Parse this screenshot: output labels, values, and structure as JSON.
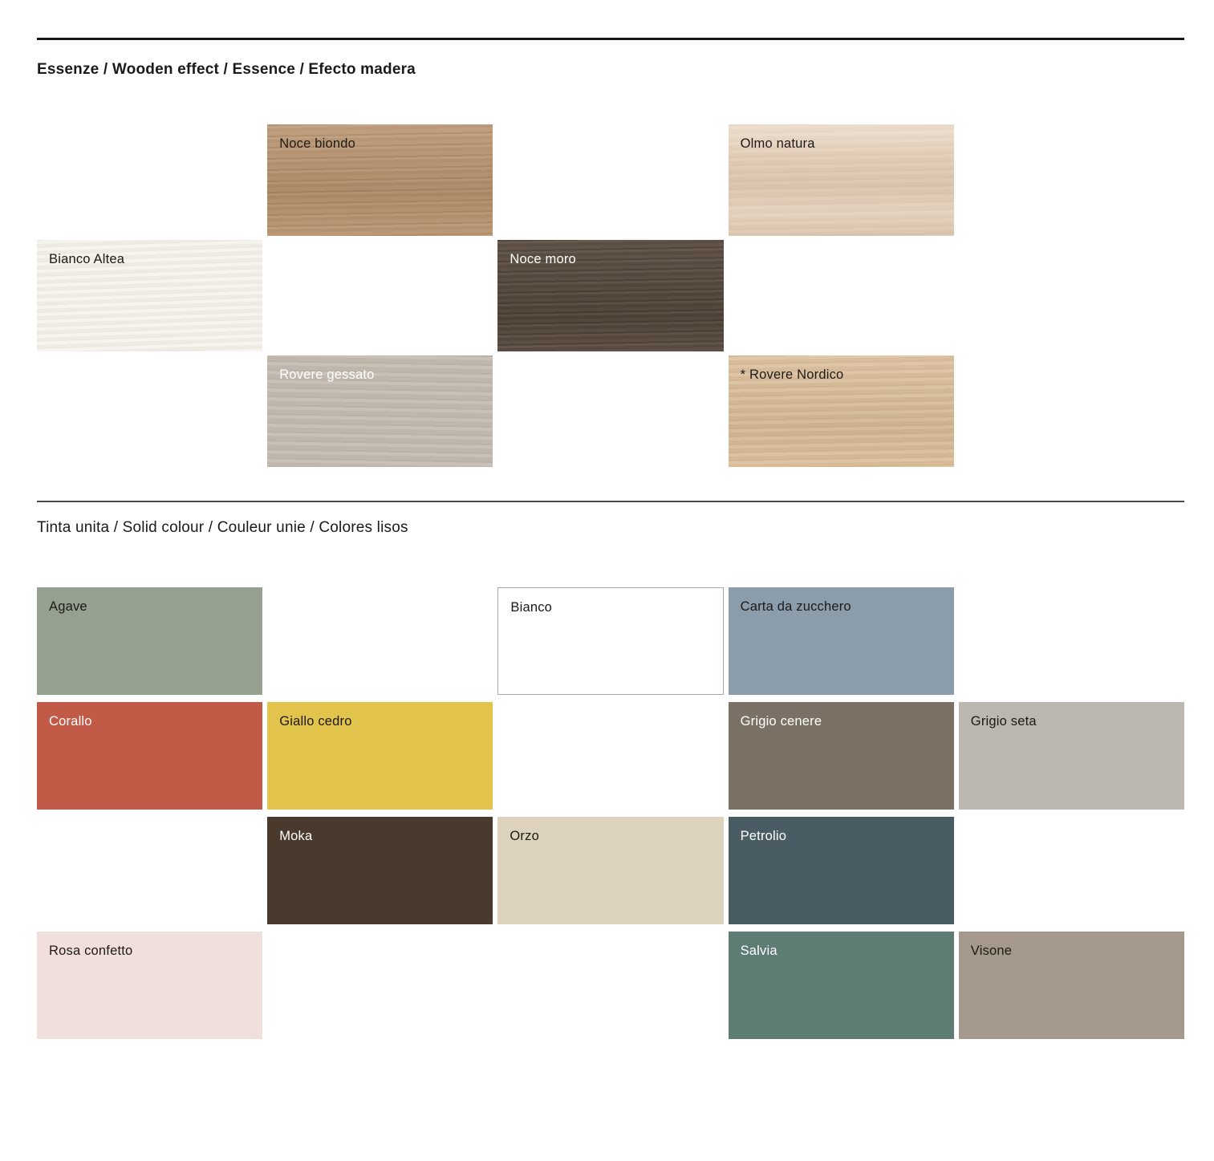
{
  "rules": {
    "thick_color": "#161616",
    "thin_color": "#4a4a4a"
  },
  "sections": [
    {
      "title": "Essenze / Wooden effect / Essence / Efecto madera",
      "swatches": [
        {
          "label": "Noce biondo",
          "color": "#b6906b",
          "label_color": "#1c1a17"
        },
        {
          "label": "Olmo natura",
          "color": "#e2cdb6",
          "label_color": "#1c1a17"
        },
        {
          "label": "Bianco Altea",
          "color": "#f1efe8",
          "label_color": "#1c1a17"
        },
        {
          "label": "Noce moro",
          "color": "#57493c",
          "label_color": "#ffffff"
        },
        {
          "label": "Rovere gessato",
          "color": "#c3bab0",
          "label_color": "#ffffff"
        },
        {
          "label": "* Rovere Nordico",
          "color": "#d9bc98",
          "label_color": "#1c1a17"
        }
      ]
    },
    {
      "title": "Tinta unita / Solid colour / Couleur unie / Colores lisos",
      "swatches": [
        {
          "label": "Agave",
          "color": "#95a08e",
          "label_color": "#1c1a17"
        },
        {
          "label": "Bianco",
          "color": "#ffffff",
          "label_color": "#1c1a17",
          "border_color": "#a8a8a8"
        },
        {
          "label": "Carta da zucchero",
          "color": "#8b9cab",
          "label_color": "#1c1a17"
        },
        {
          "label": "Corallo",
          "color": "#c25a48",
          "label_color": "#ffffff"
        },
        {
          "label": "Giallo cedro",
          "color": "#e2c44c",
          "label_color": "#1c1a17"
        },
        {
          "label": "Grigio cenere",
          "color": "#7a7164",
          "label_color": "#ffffff"
        },
        {
          "label": "Grigio seta",
          "color": "#bcb7af",
          "label_color": "#1c1a17"
        },
        {
          "label": "Moka",
          "color": "#4a3a2d",
          "label_color": "#ffffff"
        },
        {
          "label": "Orzo",
          "color": "#ddd2bb",
          "label_color": "#1c1a17"
        },
        {
          "label": "Petrolio",
          "color": "#4a5c63",
          "label_color": "#ffffff"
        },
        {
          "label": "Rosa confetto",
          "color": "#f0dfda",
          "label_color": "#1c1a17"
        },
        {
          "label": "Salvia",
          "color": "#5d7d74",
          "label_color": "#ffffff"
        },
        {
          "label": "Visone",
          "color": "#a4998a",
          "label_color": "#1c1a17"
        }
      ]
    }
  ]
}
